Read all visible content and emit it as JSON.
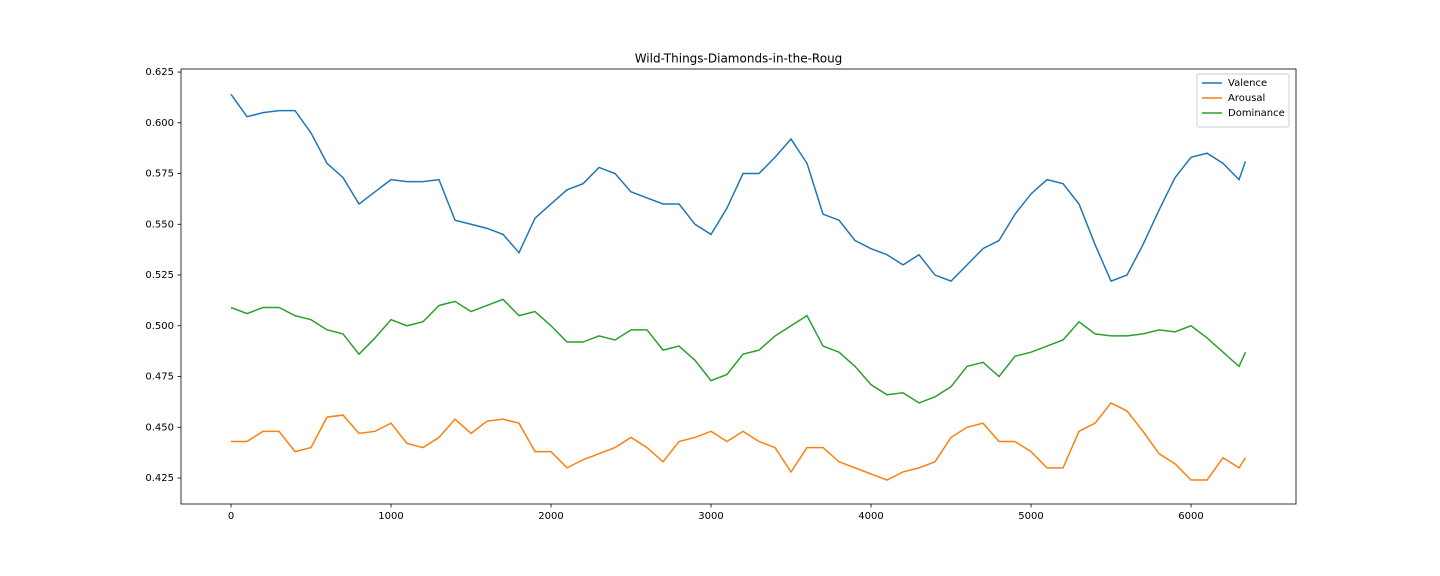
{
  "chart_data": {
    "type": "line",
    "title": "Wild-Things-Diamonds-in-the-Roug",
    "x": [
      0,
      100,
      200,
      300,
      400,
      500,
      600,
      700,
      800,
      900,
      1000,
      1100,
      1200,
      1300,
      1400,
      1500,
      1600,
      1700,
      1800,
      1900,
      2000,
      2100,
      2200,
      2300,
      2400,
      2500,
      2600,
      2700,
      2800,
      2900,
      3000,
      3100,
      3200,
      3300,
      3400,
      3500,
      3600,
      3700,
      3800,
      3900,
      4000,
      4100,
      4200,
      4300,
      4400,
      4500,
      4600,
      4700,
      4800,
      4900,
      5000,
      5100,
      5200,
      5300,
      5400,
      5500,
      5600,
      5700,
      5800,
      5900,
      6000,
      6100,
      6200,
      6300,
      6340
    ],
    "series": [
      {
        "name": "Valence",
        "color": "#1f77b4",
        "values": [
          0.614,
          0.603,
          0.605,
          0.606,
          0.606,
          0.595,
          0.58,
          0.573,
          0.56,
          0.566,
          0.572,
          0.571,
          0.571,
          0.572,
          0.552,
          0.55,
          0.548,
          0.545,
          0.536,
          0.553,
          0.56,
          0.567,
          0.57,
          0.578,
          0.575,
          0.566,
          0.563,
          0.56,
          0.56,
          0.55,
          0.545,
          0.558,
          0.575,
          0.575,
          0.583,
          0.592,
          0.58,
          0.555,
          0.552,
          0.542,
          0.538,
          0.535,
          0.53,
          0.535,
          0.525,
          0.522,
          0.53,
          0.538,
          0.542,
          0.555,
          0.565,
          0.572,
          0.57,
          0.56,
          0.54,
          0.522,
          0.525,
          0.54,
          0.557,
          0.573,
          0.583,
          0.585,
          0.58,
          0.572,
          0.581
        ]
      },
      {
        "name": "Arousal",
        "color": "#ff7f0e",
        "values": [
          0.443,
          0.443,
          0.448,
          0.448,
          0.438,
          0.44,
          0.455,
          0.456,
          0.447,
          0.448,
          0.452,
          0.442,
          0.44,
          0.445,
          0.454,
          0.447,
          0.453,
          0.454,
          0.452,
          0.438,
          0.438,
          0.43,
          0.434,
          0.437,
          0.44,
          0.445,
          0.44,
          0.433,
          0.443,
          0.445,
          0.448,
          0.443,
          0.448,
          0.443,
          0.44,
          0.428,
          0.44,
          0.44,
          0.433,
          0.43,
          0.427,
          0.424,
          0.428,
          0.43,
          0.433,
          0.445,
          0.45,
          0.452,
          0.443,
          0.443,
          0.438,
          0.43,
          0.43,
          0.448,
          0.452,
          0.462,
          0.458,
          0.448,
          0.437,
          0.432,
          0.424,
          0.424,
          0.435,
          0.43,
          0.435
        ]
      },
      {
        "name": "Dominance",
        "color": "#2ca02c",
        "values": [
          0.509,
          0.506,
          0.509,
          0.509,
          0.505,
          0.503,
          0.498,
          0.496,
          0.486,
          0.494,
          0.503,
          0.5,
          0.502,
          0.51,
          0.512,
          0.507,
          0.51,
          0.513,
          0.505,
          0.507,
          0.5,
          0.492,
          0.492,
          0.495,
          0.493,
          0.498,
          0.498,
          0.488,
          0.49,
          0.483,
          0.473,
          0.476,
          0.486,
          0.488,
          0.495,
          0.5,
          0.505,
          0.49,
          0.487,
          0.48,
          0.471,
          0.466,
          0.467,
          0.462,
          0.465,
          0.47,
          0.48,
          0.482,
          0.475,
          0.485,
          0.487,
          0.49,
          0.493,
          0.502,
          0.496,
          0.495,
          0.495,
          0.496,
          0.498,
          0.497,
          0.5,
          0.494,
          0.487,
          0.48,
          0.487
        ]
      }
    ],
    "xlim": [
      -312.5,
      6656
    ],
    "xticks": [
      0,
      1000,
      2000,
      3000,
      4000,
      5000,
      6000
    ],
    "ylim": [
      0.4122,
      0.6265
    ],
    "yticks": [
      0.425,
      {
        "value": 0.45,
        "label": "0.450"
      },
      0.475,
      {
        "value": 0.5,
        "label": "0.500"
      },
      0.525,
      {
        "value": 0.55,
        "label": "0.550"
      },
      0.575,
      {
        "value": 0.6,
        "label": "0.600"
      },
      0.625
    ],
    "legend": "upper right"
  }
}
